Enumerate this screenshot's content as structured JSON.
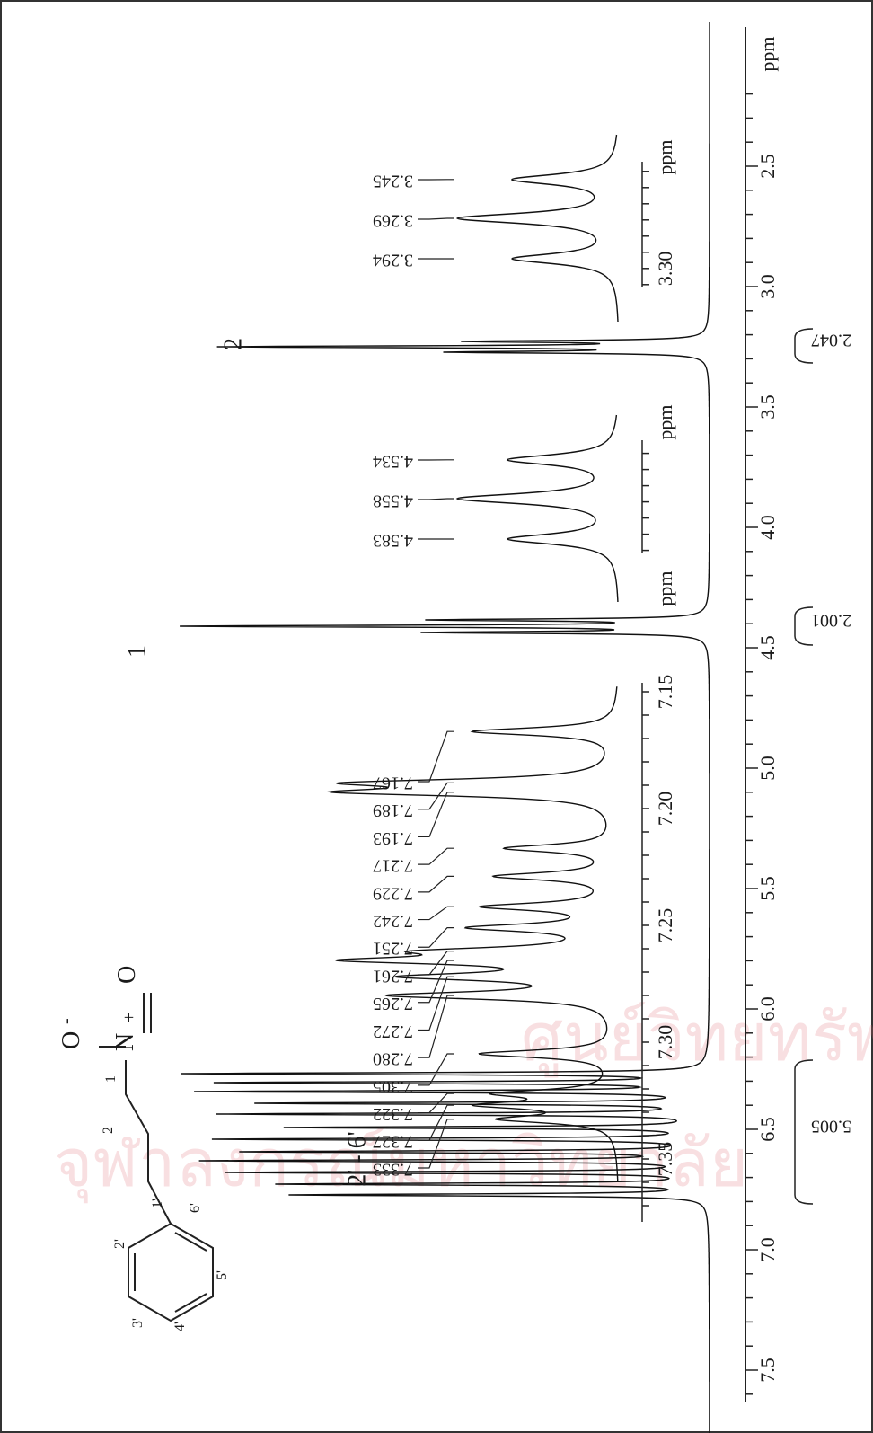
{
  "axis": {
    "ticks": [
      "7.5",
      "7.0",
      "6.5",
      "6.0",
      "5.5",
      "5.0",
      "4.5",
      "4.0",
      "3.5",
      "3.0",
      "2.5"
    ],
    "unit": "ppm"
  },
  "peak_groups": [
    "2' - 6'",
    "1",
    "2"
  ],
  "integrals": [
    "5.005",
    "2.001",
    "2.047"
  ],
  "insets": [
    {
      "peaks": [
        "7.333",
        "7.327",
        "7.322",
        "7.305",
        "7.280",
        "7.272",
        "7.265",
        "7.261",
        "7.251",
        "7.242",
        "7.229",
        "7.217",
        "7.193",
        "7.189",
        "7.167"
      ],
      "ticks": [
        "7.35",
        "7.30",
        "7.25",
        "7.20",
        "7.15"
      ],
      "unit": "ppm"
    },
    {
      "peaks": [
        "4.583",
        "4.558",
        "4.534"
      ],
      "unit": "ppm"
    },
    {
      "peaks": [
        "3.294",
        "3.269",
        "3.245"
      ],
      "ticks": [
        "3.30"
      ],
      "unit": "ppm"
    }
  ],
  "structure": {
    "atoms": [
      "O",
      "-",
      "N",
      "+",
      "O"
    ],
    "numbers": [
      "1",
      "2",
      "1'",
      "2'",
      "3'",
      "4'",
      "5'",
      "6'"
    ]
  },
  "watermark": [
    "ศูนย์วิทยทรัพยากร",
    "จุฬาลงกรณ์มหาวิทยาลัย"
  ]
}
